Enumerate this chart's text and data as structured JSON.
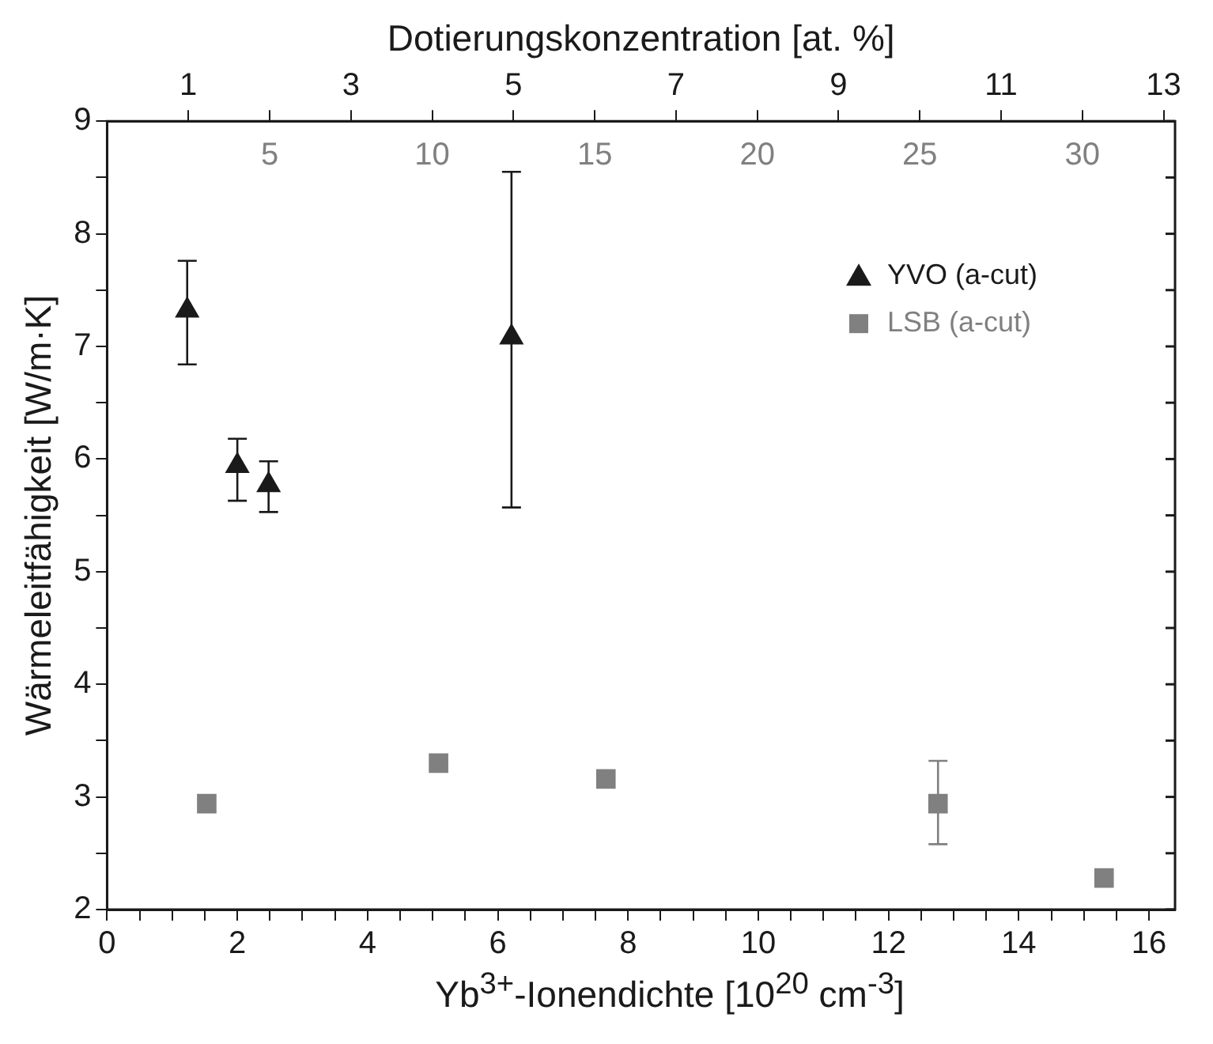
{
  "chart_data": {
    "type": "scatter",
    "x2label": "Dotierungskonzentration [at. %]",
    "xlabel": "Yb$^{3+}$-Ionendichte [10$^{20}$ cm$^{-3}$]",
    "ylabel": "Wärmeleitfähigkeit [W/m·K]",
    "xlim": [
      0,
      16.4
    ],
    "xticks": [
      0,
      {
        "value": 0.5,
        "label": null
      },
      {
        "value": 1,
        "label": null
      },
      {
        "value": 1.5,
        "label": null
      },
      2,
      {
        "value": 2.5,
        "label": null
      },
      {
        "value": 3,
        "label": null
      },
      {
        "value": 3.5,
        "label": null
      },
      4,
      {
        "value": 4.5,
        "label": null
      },
      {
        "value": 5,
        "label": null
      },
      {
        "value": 5.5,
        "label": null
      },
      6,
      {
        "value": 6.5,
        "label": null
      },
      {
        "value": 7,
        "label": null
      },
      {
        "value": 7.5,
        "label": null
      },
      8,
      {
        "value": 8.5,
        "label": null
      },
      {
        "value": 9,
        "label": null
      },
      {
        "value": 9.5,
        "label": null
      },
      10,
      {
        "value": 10.5,
        "label": null
      },
      {
        "value": 11,
        "label": null
      },
      {
        "value": 11.5,
        "label": null
      },
      12,
      {
        "value": 12.5,
        "label": null
      },
      {
        "value": 13,
        "label": null
      },
      {
        "value": 13.5,
        "label": null
      },
      14,
      {
        "value": 14.5,
        "label": null
      },
      {
        "value": 15,
        "label": null
      },
      {
        "value": 15.5,
        "label": null
      },
      16
    ],
    "x2lim": [
      0,
      13.14
    ],
    "x2ticks": [
      1,
      {
        "value": 2,
        "label": null
      },
      3,
      {
        "value": 4,
        "label": null
      },
      5,
      {
        "value": 6,
        "label": null
      },
      7,
      {
        "value": 8,
        "label": null
      },
      9,
      {
        "value": 10,
        "label": null
      },
      11,
      {
        "value": 12,
        "label": null
      },
      13
    ],
    "annotations": [
      "5",
      "10",
      "15",
      "20",
      "25",
      "30"
    ],
    "ylim": [
      2,
      9
    ],
    "yticks": [
      2,
      {
        "value": 2.5,
        "label": null
      },
      3,
      {
        "value": 3.5,
        "label": null
      },
      4,
      {
        "value": 4.5,
        "label": null
      },
      5,
      {
        "value": 5.5,
        "label": null
      },
      6,
      {
        "value": 6.5,
        "label": null
      },
      7,
      {
        "value": 7.5,
        "label": null
      },
      8,
      {
        "value": 8.5,
        "label": null
      },
      9
    ],
    "grid": false,
    "legend": "top right",
    "series": [
      {
        "name": "YVO (a-cut)",
        "color": "#1a1a1a",
        "marker": "triangle",
        "x": [
          1.23,
          2.0,
          2.48,
          6.21
        ],
        "values": [
          7.32,
          5.94,
          5.77,
          7.08
        ],
        "errors": [
          [
            6.84,
            7.76
          ],
          [
            5.63,
            6.18
          ],
          [
            5.53,
            5.98
          ],
          [
            5.57,
            8.55
          ]
        ]
      },
      {
        "name": "LSB (a-cut)",
        "color": "#808080",
        "marker": "square",
        "x": [
          1.53,
          5.09,
          7.66,
          12.76,
          15.31
        ],
        "values": [
          2.94,
          3.3,
          3.16,
          2.94,
          2.28
        ],
        "errors": [
          null,
          null,
          null,
          [
            2.58,
            3.32
          ],
          null
        ]
      }
    ]
  }
}
